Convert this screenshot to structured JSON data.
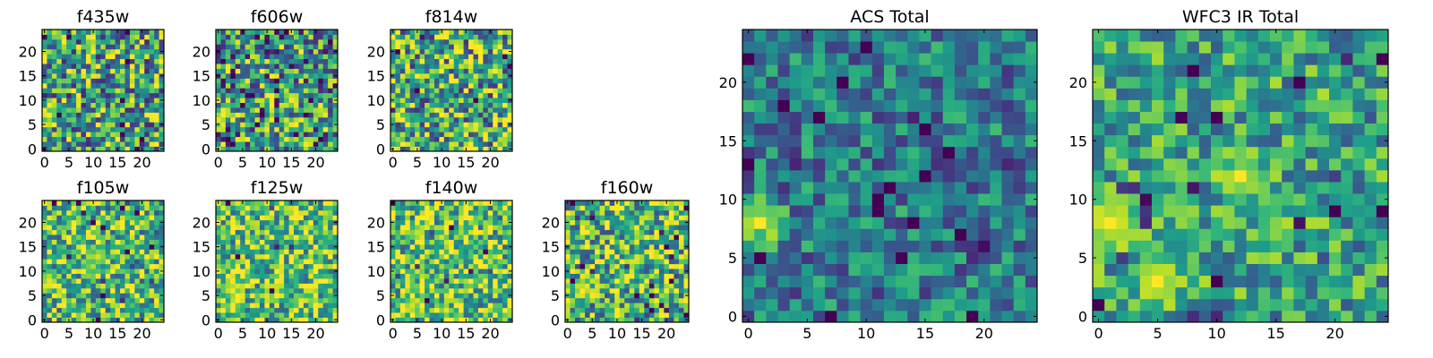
{
  "chart_data": [
    {
      "type": "heatmap",
      "title": "f435w",
      "xlim": [
        0,
        25
      ],
      "ylim": [
        0,
        25
      ],
      "xticks": [
        "0",
        "5",
        "10",
        "15",
        "20"
      ],
      "yticks": [
        "0",
        "5",
        "10",
        "15",
        "20"
      ],
      "colormap": "viridis",
      "seed": 3,
      "contrast": 0.95,
      "bias": 0.58,
      "spots": [
        {
          "x": 1,
          "y": 7,
          "w": 2,
          "v": 1
        }
      ]
    },
    {
      "type": "heatmap",
      "title": "f606w",
      "xlim": [
        0,
        25
      ],
      "ylim": [
        0,
        25
      ],
      "xticks": [
        "0",
        "5",
        "10",
        "15",
        "20"
      ],
      "yticks": [
        "0",
        "5",
        "10",
        "15",
        "20"
      ],
      "colormap": "viridis",
      "seed": 7,
      "contrast": 1.0,
      "bias": 0.52,
      "spots": [
        {
          "x": 1,
          "y": 7,
          "w": 2,
          "v": 1
        }
      ]
    },
    {
      "type": "heatmap",
      "title": "f814w",
      "xlim": [
        0,
        25
      ],
      "ylim": [
        0,
        25
      ],
      "xticks": [
        "0",
        "5",
        "10",
        "15",
        "20"
      ],
      "yticks": [
        "0",
        "5",
        "10",
        "15",
        "20"
      ],
      "colormap": "viridis",
      "seed": 11,
      "contrast": 0.95,
      "bias": 0.62,
      "spots": [
        {
          "x": 1,
          "y": 7,
          "w": 2,
          "v": 1
        }
      ]
    },
    {
      "type": "heatmap",
      "title": "f105w",
      "xlim": [
        0,
        25
      ],
      "ylim": [
        0,
        25
      ],
      "xticks": [
        "0",
        "5",
        "10",
        "15",
        "20"
      ],
      "yticks": [
        "0",
        "5",
        "10",
        "15",
        "20"
      ],
      "colormap": "viridis",
      "seed": 13,
      "contrast": 0.8,
      "bias": 0.68,
      "spots": [
        {
          "x": 1,
          "y": 8,
          "w": 3,
          "v": 0.95
        },
        {
          "x": 11,
          "y": 13,
          "w": 3,
          "v": 0.9
        }
      ]
    },
    {
      "type": "heatmap",
      "title": "f125w",
      "xlim": [
        0,
        25
      ],
      "ylim": [
        0,
        25
      ],
      "xticks": [
        "0",
        "5",
        "10",
        "15",
        "20"
      ],
      "yticks": [
        "0",
        "5",
        "10",
        "15",
        "20"
      ],
      "colormap": "viridis",
      "seed": 17,
      "contrast": 0.8,
      "bias": 0.72,
      "spots": [
        {
          "x": 3,
          "y": 6,
          "w": 3,
          "v": 0.95
        }
      ]
    },
    {
      "type": "heatmap",
      "title": "f140w",
      "xlim": [
        0,
        25
      ],
      "ylim": [
        0,
        25
      ],
      "xticks": [
        "0",
        "5",
        "10",
        "15",
        "20"
      ],
      "yticks": [
        "0",
        "5",
        "10",
        "15",
        "20"
      ],
      "colormap": "viridis",
      "seed": 19,
      "contrast": 0.8,
      "bias": 0.72,
      "spots": [
        {
          "x": 4,
          "y": 3,
          "w": 3,
          "v": 0.95
        }
      ]
    },
    {
      "type": "heatmap",
      "title": "f160w",
      "xlim": [
        0,
        25
      ],
      "ylim": [
        0,
        25
      ],
      "xticks": [
        "0",
        "5",
        "10",
        "15",
        "20"
      ],
      "yticks": [
        "0",
        "5",
        "10",
        "15",
        "20"
      ],
      "colormap": "viridis",
      "seed": 23,
      "contrast": 0.85,
      "bias": 0.66,
      "spots": [
        {
          "x": 3,
          "y": 6,
          "w": 3,
          "v": 0.95
        },
        {
          "x": 13,
          "y": 12,
          "w": 2,
          "v": 0.9
        }
      ]
    },
    {
      "type": "heatmap",
      "title": "ACS Total",
      "xlim": [
        0,
        25
      ],
      "ylim": [
        0,
        25
      ],
      "xticks": [
        "0",
        "5",
        "10",
        "15",
        "20"
      ],
      "yticks": [
        "0",
        "5",
        "10",
        "15",
        "20"
      ],
      "colormap": "viridis",
      "seed": 29,
      "contrast": 0.55,
      "bias": 0.42,
      "spots": [
        {
          "x": 1,
          "y": 8,
          "w": 3,
          "v": 1
        },
        {
          "x": 20,
          "y": 6,
          "w": 2,
          "v": 0.05
        }
      ]
    },
    {
      "type": "heatmap",
      "title": "WFC3 IR Total",
      "xlim": [
        0,
        25
      ],
      "ylim": [
        0,
        25
      ],
      "xticks": [
        "0",
        "5",
        "10",
        "15",
        "20"
      ],
      "yticks": [
        "0",
        "5",
        "10",
        "15",
        "20"
      ],
      "colormap": "viridis",
      "seed": 31,
      "contrast": 0.6,
      "bias": 0.58,
      "spots": [
        {
          "x": 1,
          "y": 8,
          "w": 4,
          "v": 0.95
        },
        {
          "x": 5,
          "y": 3,
          "w": 3,
          "v": 0.95
        },
        {
          "x": 12,
          "y": 12,
          "w": 3,
          "v": 0.95
        }
      ]
    }
  ]
}
